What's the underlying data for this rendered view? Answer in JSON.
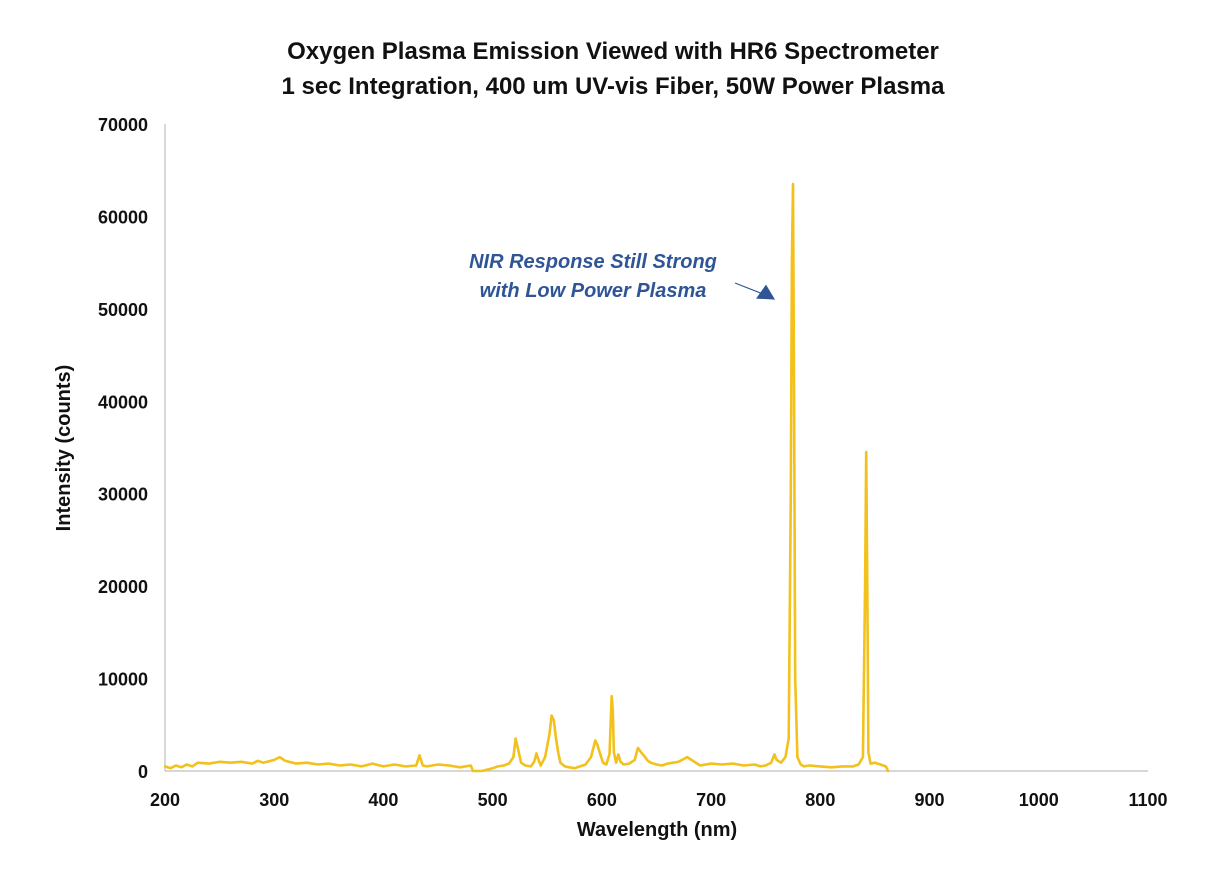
{
  "chart_data": {
    "type": "line",
    "title": "Oxygen Plasma Emission Viewed with HR6 Spectrometer",
    "subtitle": "1 sec Integration, 400 um UV-vis Fiber, 50W Power Plasma",
    "xlabel": "Wavelength (nm)",
    "ylabel": "Intensity (counts)",
    "xlim": [
      200,
      1100
    ],
    "ylim": [
      0,
      70000
    ],
    "x_ticks": [
      "200",
      "300",
      "400",
      "500",
      "600",
      "700",
      "800",
      "900",
      "1000",
      "1100"
    ],
    "y_ticks": [
      "0",
      "10000",
      "20000",
      "30000",
      "40000",
      "50000",
      "60000",
      "70000"
    ],
    "grid": false,
    "legend": "none",
    "colors": {
      "series": "#F2C11C",
      "annotation": "#2F5597",
      "axis": "#BFBFBF",
      "text": "#111111"
    },
    "annotation": {
      "lines": [
        "NIR Response Still Strong",
        "with Low Power Plasma"
      ],
      "points_to": {
        "x": 775,
        "y": 51000
      }
    },
    "series": [
      {
        "x": [
          200,
          205,
          210,
          215,
          220,
          225,
          230,
          240,
          250,
          260,
          270,
          280,
          285,
          290,
          300,
          305,
          310,
          320,
          330,
          340,
          350,
          360,
          370,
          380,
          390,
          400,
          410,
          420,
          430,
          433,
          436,
          440,
          450,
          460,
          470,
          480,
          482,
          485,
          490,
          500,
          505,
          510,
          515,
          519,
          521,
          523,
          526,
          530,
          535,
          538,
          540,
          542,
          544,
          548,
          552,
          554,
          556,
          558,
          560,
          562,
          566,
          570,
          575,
          580,
          585,
          590,
          594,
          596,
          598,
          601,
          604,
          607,
          609,
          610,
          611,
          613,
          615,
          617,
          620,
          625,
          630,
          633,
          636,
          639,
          642,
          645,
          650,
          655,
          660,
          665,
          670,
          675,
          678,
          682,
          686,
          690,
          695,
          700,
          710,
          720,
          730,
          740,
          745,
          750,
          755,
          758,
          760,
          764,
          768,
          771,
          773,
          774,
          775,
          776,
          777,
          779,
          782,
          785,
          790,
          800,
          810,
          820,
          830,
          835,
          839,
          841,
          842,
          843,
          844,
          846,
          850,
          855,
          860,
          862
        ],
        "y": [
          500,
          300,
          600,
          400,
          700,
          500,
          900,
          800,
          1000,
          900,
          1000,
          800,
          1100,
          900,
          1200,
          1500,
          1100,
          800,
          900,
          700,
          800,
          600,
          700,
          500,
          800,
          500,
          700,
          500,
          600,
          1700,
          600,
          500,
          700,
          600,
          400,
          600,
          0,
          0,
          0,
          300,
          500,
          600,
          800,
          1500,
          3500,
          2500,
          900,
          600,
          500,
          1000,
          1900,
          1200,
          600,
          1500,
          4000,
          6000,
          5500,
          3500,
          2000,
          900,
          500,
          400,
          300,
          500,
          700,
          1500,
          3300,
          2800,
          2000,
          900,
          700,
          1800,
          8100,
          6500,
          2000,
          900,
          1800,
          1000,
          700,
          800,
          1200,
          2500,
          2000,
          1600,
          1100,
          900,
          700,
          600,
          800,
          900,
          1000,
          1300,
          1500,
          1200,
          900,
          600,
          700,
          800,
          700,
          800,
          600,
          700,
          500,
          600,
          900,
          1800,
          1200,
          900,
          1500,
          3500,
          30000,
          55000,
          63500,
          40000,
          10000,
          1500,
          700,
          500,
          600,
          500,
          400,
          500,
          500,
          700,
          1500,
          20000,
          34500,
          20000,
          2000,
          800,
          900,
          700,
          500,
          0
        ]
      }
    ]
  }
}
